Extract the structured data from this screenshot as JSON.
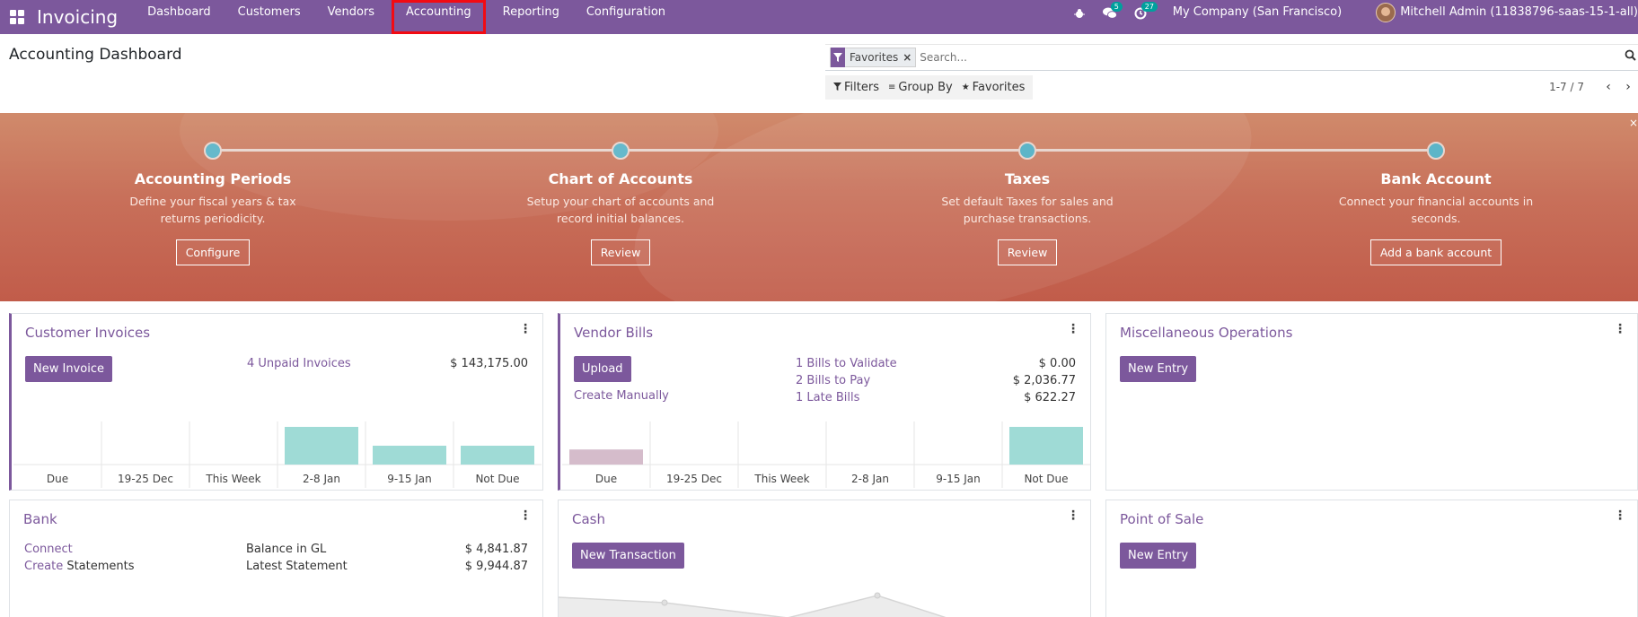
{
  "navbar": {
    "brand": "Invoicing",
    "menu": [
      "Dashboard",
      "Customers",
      "Vendors",
      "Accounting",
      "Reporting",
      "Configuration"
    ],
    "messages_count": "5",
    "activities_count": "27",
    "company": "My Company (San Francisco)",
    "user": "Mitchell Admin (11838796-saas-15-1-all)"
  },
  "control_panel": {
    "title": "Accounting Dashboard",
    "facet": "Favorites",
    "search_placeholder": "Search...",
    "filters_label": "Filters",
    "groupby_label": "Group By",
    "favorites_label": "Favorites",
    "pager": "1-7 / 7"
  },
  "banner": {
    "steps": [
      {
        "title": "Accounting Periods",
        "desc_line1": "Define your fiscal years & tax",
        "desc_line2": "returns periodicity.",
        "button": "Configure"
      },
      {
        "title": "Chart of Accounts",
        "desc_line1": "Setup your chart of accounts and",
        "desc_line2": "record initial balances.",
        "button": "Review"
      },
      {
        "title": "Taxes",
        "desc_line1": "Set default Taxes for sales and",
        "desc_line2": "purchase transactions.",
        "button": "Review"
      },
      {
        "title": "Bank Account",
        "desc_line1": "Connect your financial accounts in",
        "desc_line2": "seconds.",
        "button": "Add a bank account"
      }
    ]
  },
  "cards": {
    "customer_invoices": {
      "title": "Customer Invoices",
      "button": "New Invoice",
      "unpaid_link": "4 Unpaid Invoices",
      "unpaid_amount": "$ 143,175.00"
    },
    "vendor_bills": {
      "title": "Vendor Bills",
      "button": "Upload",
      "create_manually": "Create Manually",
      "rows": [
        {
          "label": "1 Bills to Validate",
          "amount": "$ 0.00"
        },
        {
          "label": "2 Bills to Pay",
          "amount": "$ 2,036.77"
        },
        {
          "label": "1 Late Bills",
          "amount": "$ 622.27"
        }
      ]
    },
    "misc": {
      "title": "Miscellaneous Operations",
      "button": "New Entry"
    },
    "bank": {
      "title": "Bank",
      "connect": "Connect",
      "create": "Create",
      "statements": " Statements",
      "balance_label": "Balance in GL",
      "balance_amount": "$ 4,841.87",
      "latest_label": "Latest Statement",
      "latest_amount": "$ 9,944.87"
    },
    "cash": {
      "title": "Cash",
      "button": "New Transaction"
    },
    "pos": {
      "title": "Point of Sale",
      "button": "New Entry"
    }
  },
  "chart_data": [
    {
      "type": "bar",
      "categories": [
        "Due",
        "19-25 Dec",
        "This Week",
        "2-8 Jan",
        "9-15 Jan",
        "Not Due"
      ],
      "values": [
        0,
        0,
        0,
        1.0,
        0.5,
        0.5
      ],
      "colors": [
        "#9fdbd6",
        "#9fdbd6",
        "#9fdbd6",
        "#9fdbd6",
        "#9fdbd6",
        "#9fdbd6"
      ]
    },
    {
      "type": "bar",
      "categories": [
        "Due",
        "19-25 Dec",
        "This Week",
        "2-8 Jan",
        "9-15 Jan",
        "Not Due"
      ],
      "values": [
        0.4,
        0,
        0,
        0,
        0,
        1.0
      ],
      "colors": [
        "#d5bccb",
        "#9fdbd6",
        "#9fdbd6",
        "#9fdbd6",
        "#9fdbd6",
        "#9fdbd6"
      ]
    }
  ],
  "colors": {
    "primary": "#7c589c",
    "accent_teal": "#00a09d",
    "banner": "#c8705a"
  }
}
